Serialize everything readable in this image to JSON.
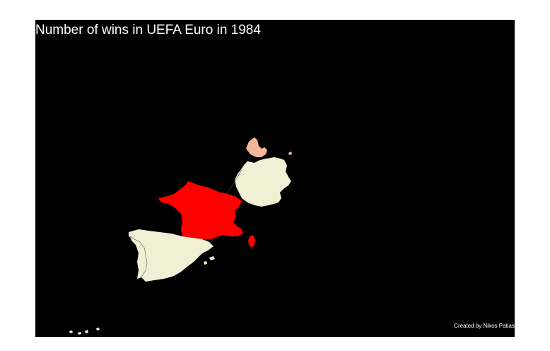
{
  "title": "Number of wins in UEFA Euro in 1984",
  "credit": "Created by Nikos Patias",
  "colors": {
    "background": "#000000",
    "none": "#f2f0d4",
    "few": "#f4b79a",
    "most": "#ff0000"
  },
  "countries": [
    {
      "name": "France",
      "fill": "most"
    },
    {
      "name": "Denmark",
      "fill": "few"
    },
    {
      "name": "West Germany",
      "fill": "none"
    },
    {
      "name": "Spain",
      "fill": "none"
    },
    {
      "name": "Portugal",
      "fill": "none"
    }
  ]
}
